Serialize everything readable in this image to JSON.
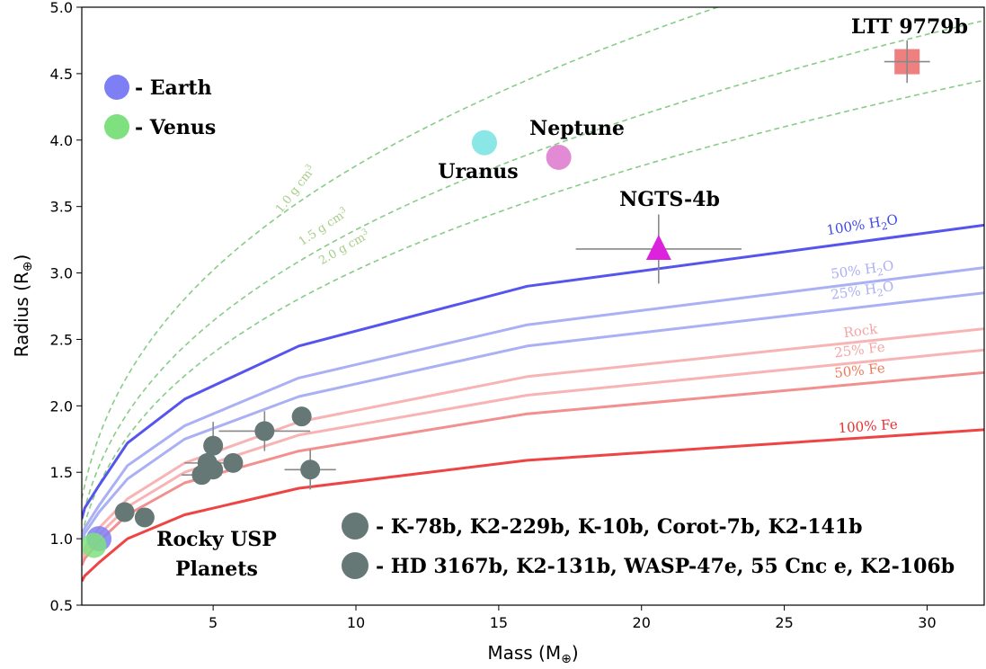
{
  "chart_data": {
    "type": "scatter",
    "title": "",
    "xlabel": "Mass (M",
    "xlabel_sym": "⊕",
    "xlabel_close": ")",
    "ylabel": "Radius (R",
    "ylabel_sym": "⊕",
    "ylabel_close": ")",
    "xlim": [
      0.4,
      32
    ],
    "ylim": [
      0.5,
      5.0
    ],
    "xticks": [
      5,
      10,
      15,
      20,
      25,
      30
    ],
    "yticks": [
      0.5,
      1.0,
      1.5,
      2.0,
      2.5,
      3.0,
      3.5,
      4.0,
      4.5,
      5.0
    ],
    "xtick_labels": [
      "5",
      "10",
      "15",
      "20",
      "25",
      "30"
    ],
    "ytick_labels": [
      "0.5",
      "1.0",
      "1.5",
      "2.0",
      "2.5",
      "3.0",
      "3.5",
      "4.0",
      "4.5",
      "5.0"
    ],
    "grid": false,
    "composition_curves": [
      {
        "label": "100% H",
        "sub": "2",
        "post": "O",
        "color": "#5555ee",
        "x": [
          0.4,
          0.5,
          1,
          2,
          4,
          8,
          16,
          32
        ],
        "y": [
          1.15,
          1.23,
          1.4,
          1.72,
          2.05,
          2.45,
          2.9,
          3.36
        ]
      },
      {
        "label": "50% H",
        "sub": "2",
        "post": "O",
        "color": "#aab0f4",
        "x": [
          0.4,
          0.5,
          1,
          2,
          4,
          8,
          16,
          32
        ],
        "y": [
          1.02,
          1.08,
          1.25,
          1.55,
          1.85,
          2.21,
          2.61,
          3.04
        ]
      },
      {
        "label": "25% H",
        "sub": "2",
        "post": "O",
        "color": "#aab0f4",
        "x": [
          0.4,
          0.5,
          1,
          2,
          4,
          8,
          16,
          32
        ],
        "y": [
          0.98,
          1.04,
          1.2,
          1.45,
          1.75,
          2.07,
          2.45,
          2.85
        ]
      },
      {
        "label": "Rock",
        "sub": "",
        "post": "",
        "color": "#f8b4b4",
        "x": [
          0.4,
          0.5,
          1,
          2,
          4,
          8,
          16,
          32
        ],
        "y": [
          0.88,
          0.93,
          1.08,
          1.3,
          1.57,
          1.88,
          2.22,
          2.58
        ]
      },
      {
        "label": "25% Fe",
        "sub": "",
        "post": "",
        "color": "#f8b4b4",
        "x": [
          0.4,
          0.5,
          1,
          2,
          4,
          8,
          16,
          32
        ],
        "y": [
          0.84,
          0.89,
          1.03,
          1.24,
          1.5,
          1.78,
          2.08,
          2.42
        ]
      },
      {
        "label": "50% Fe",
        "sub": "",
        "post": "",
        "color": "#f29090",
        "x": [
          0.4,
          0.5,
          1,
          2,
          4,
          8,
          16,
          32
        ],
        "y": [
          0.8,
          0.85,
          0.98,
          1.18,
          1.42,
          1.66,
          1.94,
          2.25
        ]
      },
      {
        "label": "100% Fe",
        "sub": "",
        "post": "",
        "color": "#ee4444",
        "x": [
          0.4,
          0.5,
          1,
          2,
          4,
          8,
          16,
          32
        ],
        "y": [
          0.68,
          0.72,
          0.82,
          1.0,
          1.18,
          1.38,
          1.59,
          1.82
        ]
      }
    ],
    "composition_label_colors": [
      "#3f49e6",
      "#aab0f4",
      "#aab0f4",
      "#f4a6a6",
      "#f4a6a6",
      "#ec7a5a",
      "#e53030"
    ],
    "density_curves": [
      {
        "label": "1.0 g cm",
        "sup": "3",
        "density": 1.0
      },
      {
        "label": "1.5 g cm",
        "sup": "3",
        "density": 1.5
      },
      {
        "label": "2.0 g cm",
        "sup": "3",
        "density": 2.0
      }
    ],
    "density_color": "#88cc88",
    "density_label_color": "#a8cc88",
    "solar_system": [
      {
        "name": "Earth",
        "legend": "- Earth",
        "mass": 1.0,
        "radius": 1.0,
        "color": "#7f7ff5"
      },
      {
        "name": "Venus",
        "legend": "- Venus",
        "mass": 0.82,
        "radius": 0.95,
        "color": "#7fe07f"
      },
      {
        "name": "Uranus",
        "label": "Uranus",
        "mass": 14.5,
        "radius": 3.98,
        "color": "#77e2e2"
      },
      {
        "name": "Neptune",
        "label": "Neptune",
        "mass": 17.1,
        "radius": 3.87,
        "color": "#dd77cc"
      }
    ],
    "ngts4b": {
      "label": "NGTS-4b",
      "mass": 20.6,
      "radius": 3.18,
      "xerr": 2.9,
      "yerr": 0.26,
      "color": "#dd22dd"
    },
    "ltt9779b": {
      "label": "LTT 9779b",
      "mass": 29.3,
      "radius": 4.59,
      "xerr": 0.8,
      "yerr": 0.16,
      "color": "#ec6a6a"
    },
    "usp_planets": [
      {
        "mass": 1.9,
        "radius": 1.2
      },
      {
        "mass": 2.6,
        "radius": 1.16
      },
      {
        "mass": 4.6,
        "radius": 1.48,
        "xerr": 0.7
      },
      {
        "mass": 4.8,
        "radius": 1.57,
        "xerr": 0.8
      },
      {
        "mass": 5.0,
        "radius": 1.52
      },
      {
        "mass": 5.0,
        "radius": 1.7,
        "yerr": 0.18
      },
      {
        "mass": 5.7,
        "radius": 1.57
      },
      {
        "mass": 6.8,
        "radius": 1.81,
        "xerr": 1.6,
        "yerr": 0.15
      },
      {
        "mass": 8.1,
        "radius": 1.92
      },
      {
        "mass": 8.4,
        "radius": 1.52,
        "xerr": 0.9,
        "yerr": 0.15
      }
    ],
    "usp_color": "#657876",
    "usp_label_line1": "Rocky USP",
    "usp_label_line2": "Planets",
    "usp_legend": [
      "- K-78b, K2-229b, K-10b, Corot-7b, K2-141b",
      "- HD 3167b, K2-131b, WASP-47e, 55 Cnc e, K2-106b"
    ]
  }
}
